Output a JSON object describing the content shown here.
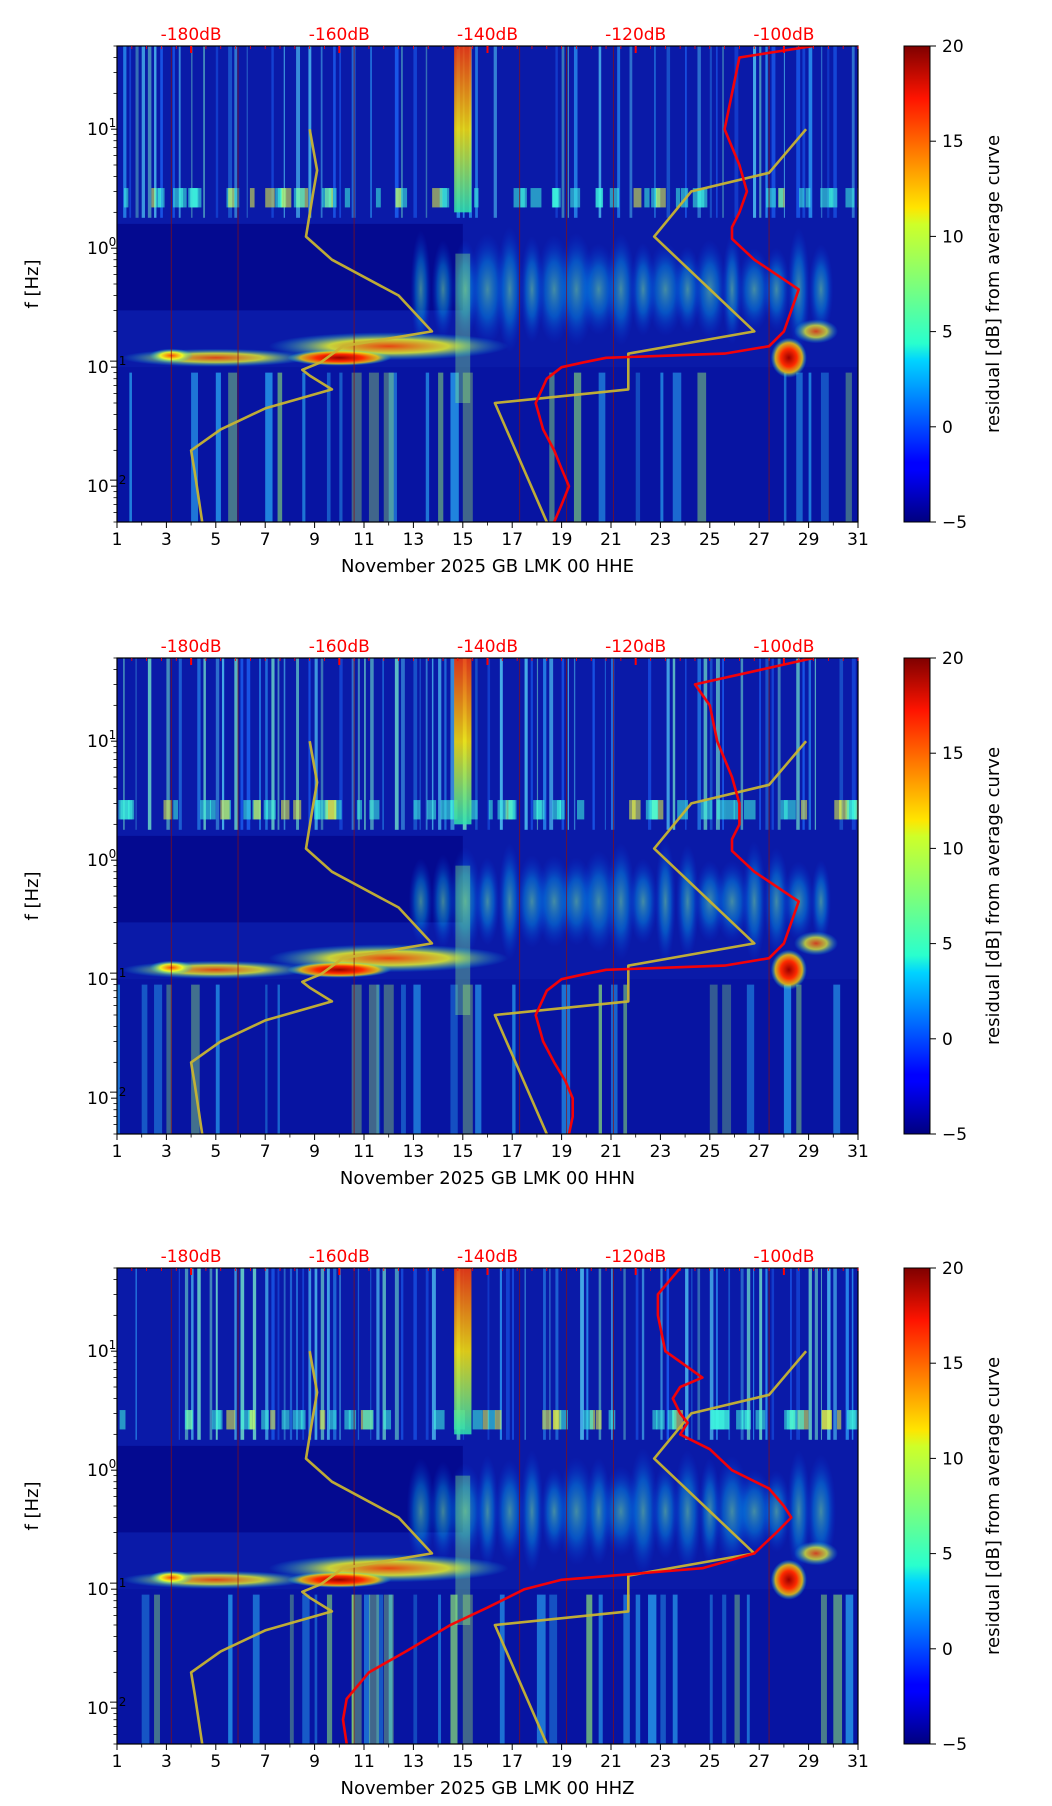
{
  "chart_data": [
    {
      "type": "heatmap",
      "channel": "HHE",
      "title": "",
      "xlabel": "November 2025 GB LMK 00 HHE",
      "ylabel": "f [Hz]",
      "colorbar_label": "residual [dB] from average curve",
      "x_range": [
        1,
        31
      ],
      "x_ticks": [
        1,
        3,
        5,
        7,
        9,
        11,
        13,
        15,
        17,
        19,
        21,
        23,
        25,
        27,
        29,
        31
      ],
      "x_tick_labels": [
        "1",
        "3",
        "5",
        "7",
        "9",
        "11",
        "13",
        "15",
        "17",
        "19",
        "21",
        "23",
        "25",
        "27",
        "29",
        "31"
      ],
      "y_scale": "log",
      "y_range_hz": [
        0.005,
        50
      ],
      "y_tick_labels": [
        {
          "base": "10",
          "exp": "1",
          "value": 10
        },
        {
          "base": "10",
          "exp": "0",
          "value": 1
        },
        {
          "base": "10",
          "exp": "−1",
          "value": 0.1
        },
        {
          "base": "10",
          "exp": "−2",
          "value": 0.01
        }
      ],
      "colorbar_range": [
        -5,
        20
      ],
      "colorbar_ticks": [
        "20",
        "15",
        "10",
        "5",
        "0",
        "−5"
      ],
      "db_axis_labels": [
        "-180dB",
        "-160dB",
        "-140dB",
        "-120dB",
        "-100dB"
      ],
      "db_axis_values": [
        -180,
        -160,
        -140,
        -120,
        -100
      ],
      "db_axis_day_positions": [
        4,
        10,
        16,
        22,
        28
      ],
      "series": [
        {
          "name": "noise model bounds",
          "color": "#c8b432",
          "f_hz": [
            10,
            4.5,
            3,
            1.25,
            0.8,
            0.4,
            0.2,
            0.15,
            0.11,
            0.095,
            0.085,
            0.065,
            0.045,
            0.03,
            0.02,
            0.013,
            0.005
          ],
          "db": [
            -164,
            -163,
            -163.5,
            -164.5,
            -161,
            -152,
            -147.5,
            -159.5,
            -162.5,
            -165,
            -164,
            -161,
            -170,
            -176,
            -180,
            -179.5,
            -178.5
          ]
        },
        {
          "name": "noise model bounds",
          "color": "#c8b432",
          "f_hz": [
            10,
            4.3,
            3,
            1.25,
            0.2,
            0.13,
            0.065,
            0.05,
            0.005
          ],
          "db": [
            -97,
            -102,
            -112.5,
            -117.5,
            -104,
            -121,
            -121,
            -139,
            -132
          ]
        },
        {
          "name": "average PSD",
          "color": "#ff0000",
          "f_hz": [
            50,
            40,
            20,
            10,
            5,
            3,
            2,
            1.5,
            1.2,
            0.8,
            0.6,
            0.45,
            0.3,
            0.2,
            0.15,
            0.13,
            0.12,
            0.11,
            0.1,
            0.08,
            0.05,
            0.03,
            0.02,
            0.014,
            0.01,
            0.007,
            0.005
          ],
          "db": [
            -96,
            -106,
            -107,
            -108,
            -106,
            -105,
            -106,
            -107,
            -107,
            -104,
            -101,
            -98,
            -99,
            -100,
            -102,
            -108,
            -124,
            -127,
            -130,
            -132,
            -133.5,
            -132.5,
            -131,
            -130,
            -129,
            -130,
            -131
          ]
        }
      ]
    },
    {
      "type": "heatmap",
      "channel": "HHN",
      "title": "",
      "xlabel": "November 2025 GB LMK 00 HHN",
      "ylabel": "f [Hz]",
      "colorbar_label": "residual [dB] from average curve",
      "x_range": [
        1,
        31
      ],
      "x_ticks": [
        1,
        3,
        5,
        7,
        9,
        11,
        13,
        15,
        17,
        19,
        21,
        23,
        25,
        27,
        29,
        31
      ],
      "x_tick_labels": [
        "1",
        "3",
        "5",
        "7",
        "9",
        "11",
        "13",
        "15",
        "17",
        "19",
        "21",
        "23",
        "25",
        "27",
        "29",
        "31"
      ],
      "y_scale": "log",
      "y_range_hz": [
        0.005,
        50
      ],
      "y_tick_labels": [
        {
          "base": "10",
          "exp": "1",
          "value": 10
        },
        {
          "base": "10",
          "exp": "0",
          "value": 1
        },
        {
          "base": "10",
          "exp": "−1",
          "value": 0.1
        },
        {
          "base": "10",
          "exp": "−2",
          "value": 0.01
        }
      ],
      "colorbar_range": [
        -5,
        20
      ],
      "colorbar_ticks": [
        "20",
        "15",
        "10",
        "5",
        "0",
        "−5"
      ],
      "db_axis_labels": [
        "-180dB",
        "-160dB",
        "-140dB",
        "-120dB",
        "-100dB"
      ],
      "db_axis_values": [
        -180,
        -160,
        -140,
        -120,
        -100
      ],
      "db_axis_day_positions": [
        4,
        10,
        16,
        22,
        28
      ],
      "series": [
        {
          "name": "noise model bounds",
          "color": "#c8b432",
          "f_hz": [
            10,
            4.5,
            3,
            1.25,
            0.8,
            0.4,
            0.2,
            0.15,
            0.11,
            0.095,
            0.085,
            0.065,
            0.045,
            0.03,
            0.02,
            0.013,
            0.005
          ],
          "db": [
            -164,
            -163,
            -163.5,
            -164.5,
            -161,
            -152,
            -147.5,
            -159.5,
            -162.5,
            -165,
            -164,
            -161,
            -170,
            -176,
            -180,
            -179.5,
            -178.5
          ]
        },
        {
          "name": "noise model bounds",
          "color": "#c8b432",
          "f_hz": [
            10,
            4.3,
            3,
            1.25,
            0.2,
            0.13,
            0.065,
            0.05,
            0.005
          ],
          "db": [
            -97,
            -102,
            -112.5,
            -117.5,
            -104,
            -121,
            -121,
            -139,
            -132
          ]
        },
        {
          "name": "average PSD",
          "color": "#ff0000",
          "f_hz": [
            50,
            30,
            20,
            10,
            5,
            3,
            2,
            1.5,
            1.2,
            0.8,
            0.6,
            0.45,
            0.3,
            0.2,
            0.15,
            0.13,
            0.12,
            0.11,
            0.1,
            0.08,
            0.05,
            0.03,
            0.02,
            0.014,
            0.01,
            0.007,
            0.005
          ],
          "db": [
            -96,
            -112,
            -110,
            -109,
            -107,
            -106,
            -106,
            -107,
            -107,
            -104,
            -101,
            -98,
            -99,
            -100,
            -102,
            -108,
            -124,
            -127,
            -130,
            -132,
            -133.5,
            -132.5,
            -131,
            -129.5,
            -128.5,
            -128.5,
            -129
          ]
        }
      ]
    },
    {
      "type": "heatmap",
      "channel": "HHZ",
      "title": "",
      "xlabel": "November 2025 GB LMK 00 HHZ",
      "ylabel": "f [Hz]",
      "colorbar_label": "residual [dB] from average curve",
      "x_range": [
        1,
        31
      ],
      "x_ticks": [
        1,
        3,
        5,
        7,
        9,
        11,
        13,
        15,
        17,
        19,
        21,
        23,
        25,
        27,
        29,
        31
      ],
      "x_tick_labels": [
        "1",
        "3",
        "5",
        "7",
        "9",
        "11",
        "13",
        "15",
        "17",
        "19",
        "21",
        "23",
        "25",
        "27",
        "29",
        "31"
      ],
      "y_scale": "log",
      "y_range_hz": [
        0.005,
        50
      ],
      "y_tick_labels": [
        {
          "base": "10",
          "exp": "1",
          "value": 10
        },
        {
          "base": "10",
          "exp": "0",
          "value": 1
        },
        {
          "base": "10",
          "exp": "−1",
          "value": 0.1
        },
        {
          "base": "10",
          "exp": "−2",
          "value": 0.01
        }
      ],
      "colorbar_range": [
        -5,
        20
      ],
      "colorbar_ticks": [
        "20",
        "15",
        "10",
        "5",
        "0",
        "−5"
      ],
      "db_axis_labels": [
        "-180dB",
        "-160dB",
        "-140dB",
        "-120dB",
        "-100dB"
      ],
      "db_axis_values": [
        -180,
        -160,
        -140,
        -120,
        -100
      ],
      "db_axis_day_positions": [
        4,
        10,
        16,
        22,
        28
      ],
      "series": [
        {
          "name": "noise model bounds",
          "color": "#c8b432",
          "f_hz": [
            10,
            4.5,
            3,
            1.25,
            0.8,
            0.4,
            0.2,
            0.15,
            0.11,
            0.095,
            0.085,
            0.065,
            0.045,
            0.03,
            0.02,
            0.013,
            0.005
          ],
          "db": [
            -164,
            -163,
            -163.5,
            -164.5,
            -161,
            -152,
            -147.5,
            -159.5,
            -162.5,
            -165,
            -164,
            -161,
            -170,
            -176,
            -180,
            -179.5,
            -178.5
          ]
        },
        {
          "name": "noise model bounds",
          "color": "#c8b432",
          "f_hz": [
            10,
            4.3,
            3,
            1.25,
            0.2,
            0.13,
            0.065,
            0.05,
            0.005
          ],
          "db": [
            -97,
            -102,
            -112.5,
            -117.5,
            -104,
            -121,
            -121,
            -139,
            -132
          ]
        },
        {
          "name": "average PSD",
          "color": "#ff0000",
          "f_hz": [
            50,
            30,
            20,
            10,
            6,
            5,
            4,
            3,
            2.5,
            2,
            1.5,
            1.0,
            0.7,
            0.5,
            0.4,
            0.3,
            0.2,
            0.15,
            0.12,
            0.1,
            0.07,
            0.05,
            0.03,
            0.02,
            0.012,
            0.008,
            0.005
          ],
          "db": [
            -114,
            -117,
            -117,
            -116,
            -111,
            -114,
            -115,
            -114,
            -113,
            -114,
            -110,
            -107,
            -102,
            -100,
            -99,
            -101,
            -104,
            -111,
            -130,
            -135,
            -140,
            -145,
            -151,
            -156,
            -159,
            -159.5,
            -159
          ]
        }
      ]
    }
  ]
}
